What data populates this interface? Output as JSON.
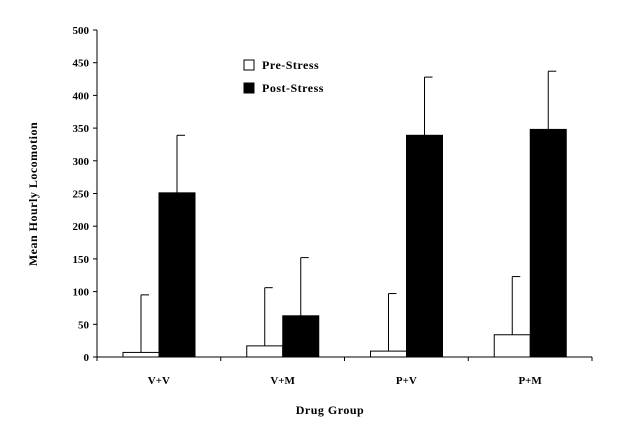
{
  "chart_data": {
    "type": "bar",
    "title": "",
    "xlabel": "Drug Group",
    "ylabel": "Mean Hourly Locomotion",
    "ylim": [
      0,
      500
    ],
    "yticks": [
      "0",
      "50",
      "100",
      "150",
      "200",
      "250",
      "300",
      "350",
      "400",
      "450",
      "500"
    ],
    "categories": [
      "V+V",
      "V+M",
      "P+V",
      "P+M"
    ],
    "series": [
      {
        "name": "Pre-Stress",
        "values": [
          7,
          17,
          9,
          34
        ],
        "error": [
          88,
          89,
          88,
          89
        ]
      },
      {
        "name": "Post-Stress",
        "values": [
          251,
          63,
          339,
          348
        ],
        "error": [
          88,
          89,
          89,
          89
        ]
      }
    ],
    "grid": false,
    "legend_position": "top-center",
    "colors": {
      "Pre-Stress": "#ffffff",
      "Post-Stress": "#000000",
      "axis": "#000000"
    }
  }
}
